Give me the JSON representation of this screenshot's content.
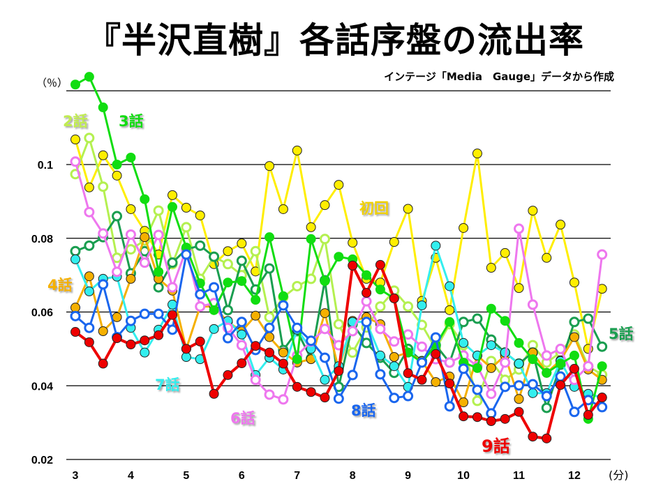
{
  "chart_data": {
    "type": "line",
    "title": "『半沢直樹』各話序盤の流出率",
    "subtitle": "インテージ「Media　Gauge」データから作成",
    "xlabel": "(分)",
    "ylabel": "（％）",
    "xlim": [
      3,
      12.5
    ],
    "ylim": [
      0.02,
      0.12
    ],
    "grid": true,
    "xticks": [
      3,
      4,
      5,
      6,
      7,
      8,
      9,
      10,
      11,
      12
    ],
    "xtick_labels": [
      "3",
      "4",
      "5",
      "6",
      "7",
      "8",
      "9",
      "10",
      "11",
      "12"
    ],
    "yticks": [
      0.02,
      0.04,
      0.06,
      0.08,
      0.1,
      0.12
    ],
    "ytick_labels": [
      "0.02",
      "0.04",
      "0.06",
      "0.08",
      "0.1",
      ""
    ],
    "x": [
      3,
      3.25,
      3.5,
      3.75,
      4,
      4.25,
      4.5,
      4.75,
      5,
      5.25,
      5.5,
      5.75,
      6,
      6.25,
      6.5,
      6.75,
      7,
      7.25,
      7.5,
      7.75,
      8,
      8.25,
      8.5,
      8.75,
      9,
      9.25,
      9.5,
      9.75,
      10,
      10.25,
      10.5,
      10.75,
      11,
      11.25,
      11.5,
      11.75,
      12,
      12.25,
      12.5
    ],
    "series": [
      {
        "name": "初回",
        "color": "#ffee00",
        "marker": "filled",
        "values": [
          0.1068,
          0.0938,
          0.1025,
          0.097,
          0.0879,
          0.082,
          0.0756,
          0.0917,
          0.0883,
          0.0862,
          0.073,
          0.0765,
          0.0786,
          0.071,
          0.0996,
          0.0879,
          0.1038,
          0.083,
          0.089,
          0.0945,
          0.0788,
          0.069,
          0.068,
          0.079,
          0.088,
          0.063,
          0.0747,
          0.0605,
          0.0828,
          0.103,
          0.072,
          0.076,
          0.0665,
          0.0875,
          0.0747,
          0.0837,
          0.068,
          0.05,
          0.0663
        ]
      },
      {
        "name": "2話",
        "color": "#b4f050",
        "marker": "hollow",
        "values": [
          0.0974,
          0.1072,
          0.094,
          0.0747,
          0.077,
          0.0794,
          0.0875,
          0.073,
          0.083,
          0.069,
          0.075,
          0.073,
          0.07,
          0.0765,
          0.0586,
          0.064,
          0.067,
          0.069,
          0.0798,
          0.0567,
          0.049,
          0.0558,
          0.0615,
          0.0658,
          0.0615,
          0.0565,
          0.05,
          0.0567,
          0.051,
          0.0359,
          0.0467,
          0.0416,
          0.0444,
          0.051,
          0.0463,
          0.049,
          0.0539,
          0.0453,
          0.043
        ]
      },
      {
        "name": "5話",
        "color": "#1a9e50",
        "marker": "hollow",
        "values": [
          0.0765,
          0.078,
          0.0803,
          0.086,
          0.0705,
          0.0765,
          0.0667,
          0.0734,
          0.077,
          0.078,
          0.075,
          0.0605,
          0.0739,
          0.0661,
          0.0718,
          0.0497,
          0.0548,
          0.0474,
          0.0686,
          0.0397,
          0.0567,
          0.0516,
          0.0476,
          0.0435,
          0.05,
          0.0467,
          0.051,
          0.0463,
          0.0573,
          0.0582,
          0.0525,
          0.049,
          0.046,
          0.049,
          0.034,
          0.0457,
          0.0573,
          0.0582,
          0.0506
        ]
      },
      {
        "name": "4話",
        "color": "#f5b000",
        "marker": "filled",
        "values": [
          0.0612,
          0.0697,
          0.0548,
          0.0586,
          0.069,
          0.0803,
          0.069,
          0.0658,
          0.05,
          0.0615,
          0.0615,
          0.0573,
          0.0548,
          0.059,
          0.0532,
          0.049,
          0.0463,
          0.0472,
          0.0597,
          0.0444,
          0.0576,
          0.0586,
          0.0567,
          0.0478,
          0.049,
          0.0467,
          0.041,
          0.0425,
          0.0355,
          0.0482,
          0.0448,
          0.0482,
          0.0364,
          0.049,
          0.0435,
          0.0469,
          0.0532,
          0.0444,
          0.0416
        ]
      },
      {
        "name": "7話",
        "color": "#33eeee",
        "marker": "filled",
        "values": [
          0.0743,
          0.0656,
          0.069,
          0.0696,
          0.0557,
          0.049,
          0.0552,
          0.062,
          0.0478,
          0.0472,
          0.0554,
          0.0576,
          0.0539,
          0.0429,
          0.0476,
          0.0444,
          0.0552,
          0.05,
          0.0416,
          0.0453,
          0.0573,
          0.0573,
          0.0482,
          0.0453,
          0.0397,
          0.0618,
          0.078,
          0.067,
          0.0516,
          0.0482,
          0.051,
          0.049,
          0.046,
          0.038,
          0.038,
          0.0467,
          0.0397,
          0.0378,
          0.0368
        ]
      },
      {
        "name": "6話",
        "color": "#ee77ee",
        "marker": "hollow",
        "values": [
          0.1008,
          0.0871,
          0.0813,
          0.0709,
          0.081,
          0.0734,
          0.0809,
          0.0667,
          0.077,
          0.0615,
          0.0624,
          0.0557,
          0.051,
          0.0416,
          0.0376,
          0.0363,
          0.0482,
          0.052,
          0.0554,
          0.051,
          0.0548,
          0.0629,
          0.0554,
          0.052,
          0.0539,
          0.0506,
          0.0472,
          0.0463,
          0.0482,
          0.0453,
          0.0378,
          0.0463,
          0.0826,
          0.062,
          0.0482,
          0.05,
          0.0416,
          0.0453,
          0.0756
        ]
      },
      {
        "name": "3話",
        "color": "#11dd11",
        "marker": "filled",
        "values": [
          0.1217,
          0.1238,
          0.1155,
          0.1,
          0.1019,
          0.0906,
          0.0709,
          0.0885,
          0.0775,
          0.0678,
          0.0605,
          0.068,
          0.0684,
          0.0633,
          0.0803,
          0.0643,
          0.0472,
          0.0798,
          0.0684,
          0.075,
          0.0743,
          0.07,
          0.0661,
          0.0637,
          0.049,
          0.0463,
          0.051,
          0.0573,
          0.0463,
          0.0448,
          0.0609,
          0.0576,
          0.0516,
          0.0472,
          0.0435,
          0.046,
          0.0482,
          0.031,
          0.0453
        ]
      },
      {
        "name": "8話",
        "color": "#1a66ee",
        "marker": "hollow",
        "values": [
          0.0589,
          0.0557,
          0.0675,
          0.0532,
          0.0576,
          0.0595,
          0.0595,
          0.0552,
          0.0756,
          0.0648,
          0.0667,
          0.0529,
          0.0573,
          0.0497,
          0.0557,
          0.0618,
          0.0557,
          0.0522,
          0.0476,
          0.0365,
          0.0429,
          0.0573,
          0.0431,
          0.0367,
          0.0372,
          0.0463,
          0.0531,
          0.0344,
          0.0446,
          0.0389,
          0.0325,
          0.0397,
          0.0401,
          0.0404,
          0.0372,
          0.0425,
          0.0329,
          0.0361,
          0.0342
        ]
      },
      {
        "name": "9話",
        "color": "#ee0000",
        "marker": "filled",
        "values": [
          0.0546,
          0.0518,
          0.046,
          0.0529,
          0.0512,
          0.0523,
          0.0537,
          0.0592,
          0.05,
          0.052,
          0.0378,
          0.0429,
          0.0461,
          0.0508,
          0.049,
          0.046,
          0.0397,
          0.0383,
          0.0368,
          0.044,
          0.0726,
          0.0652,
          0.0728,
          0.0637,
          0.0434,
          0.0416,
          0.0486,
          0.0406,
          0.0317,
          0.0315,
          0.0304,
          0.031,
          0.0329,
          0.0262,
          0.0257,
          0.0402,
          0.0446,
          0.0321,
          0.0368
        ]
      }
    ]
  }
}
